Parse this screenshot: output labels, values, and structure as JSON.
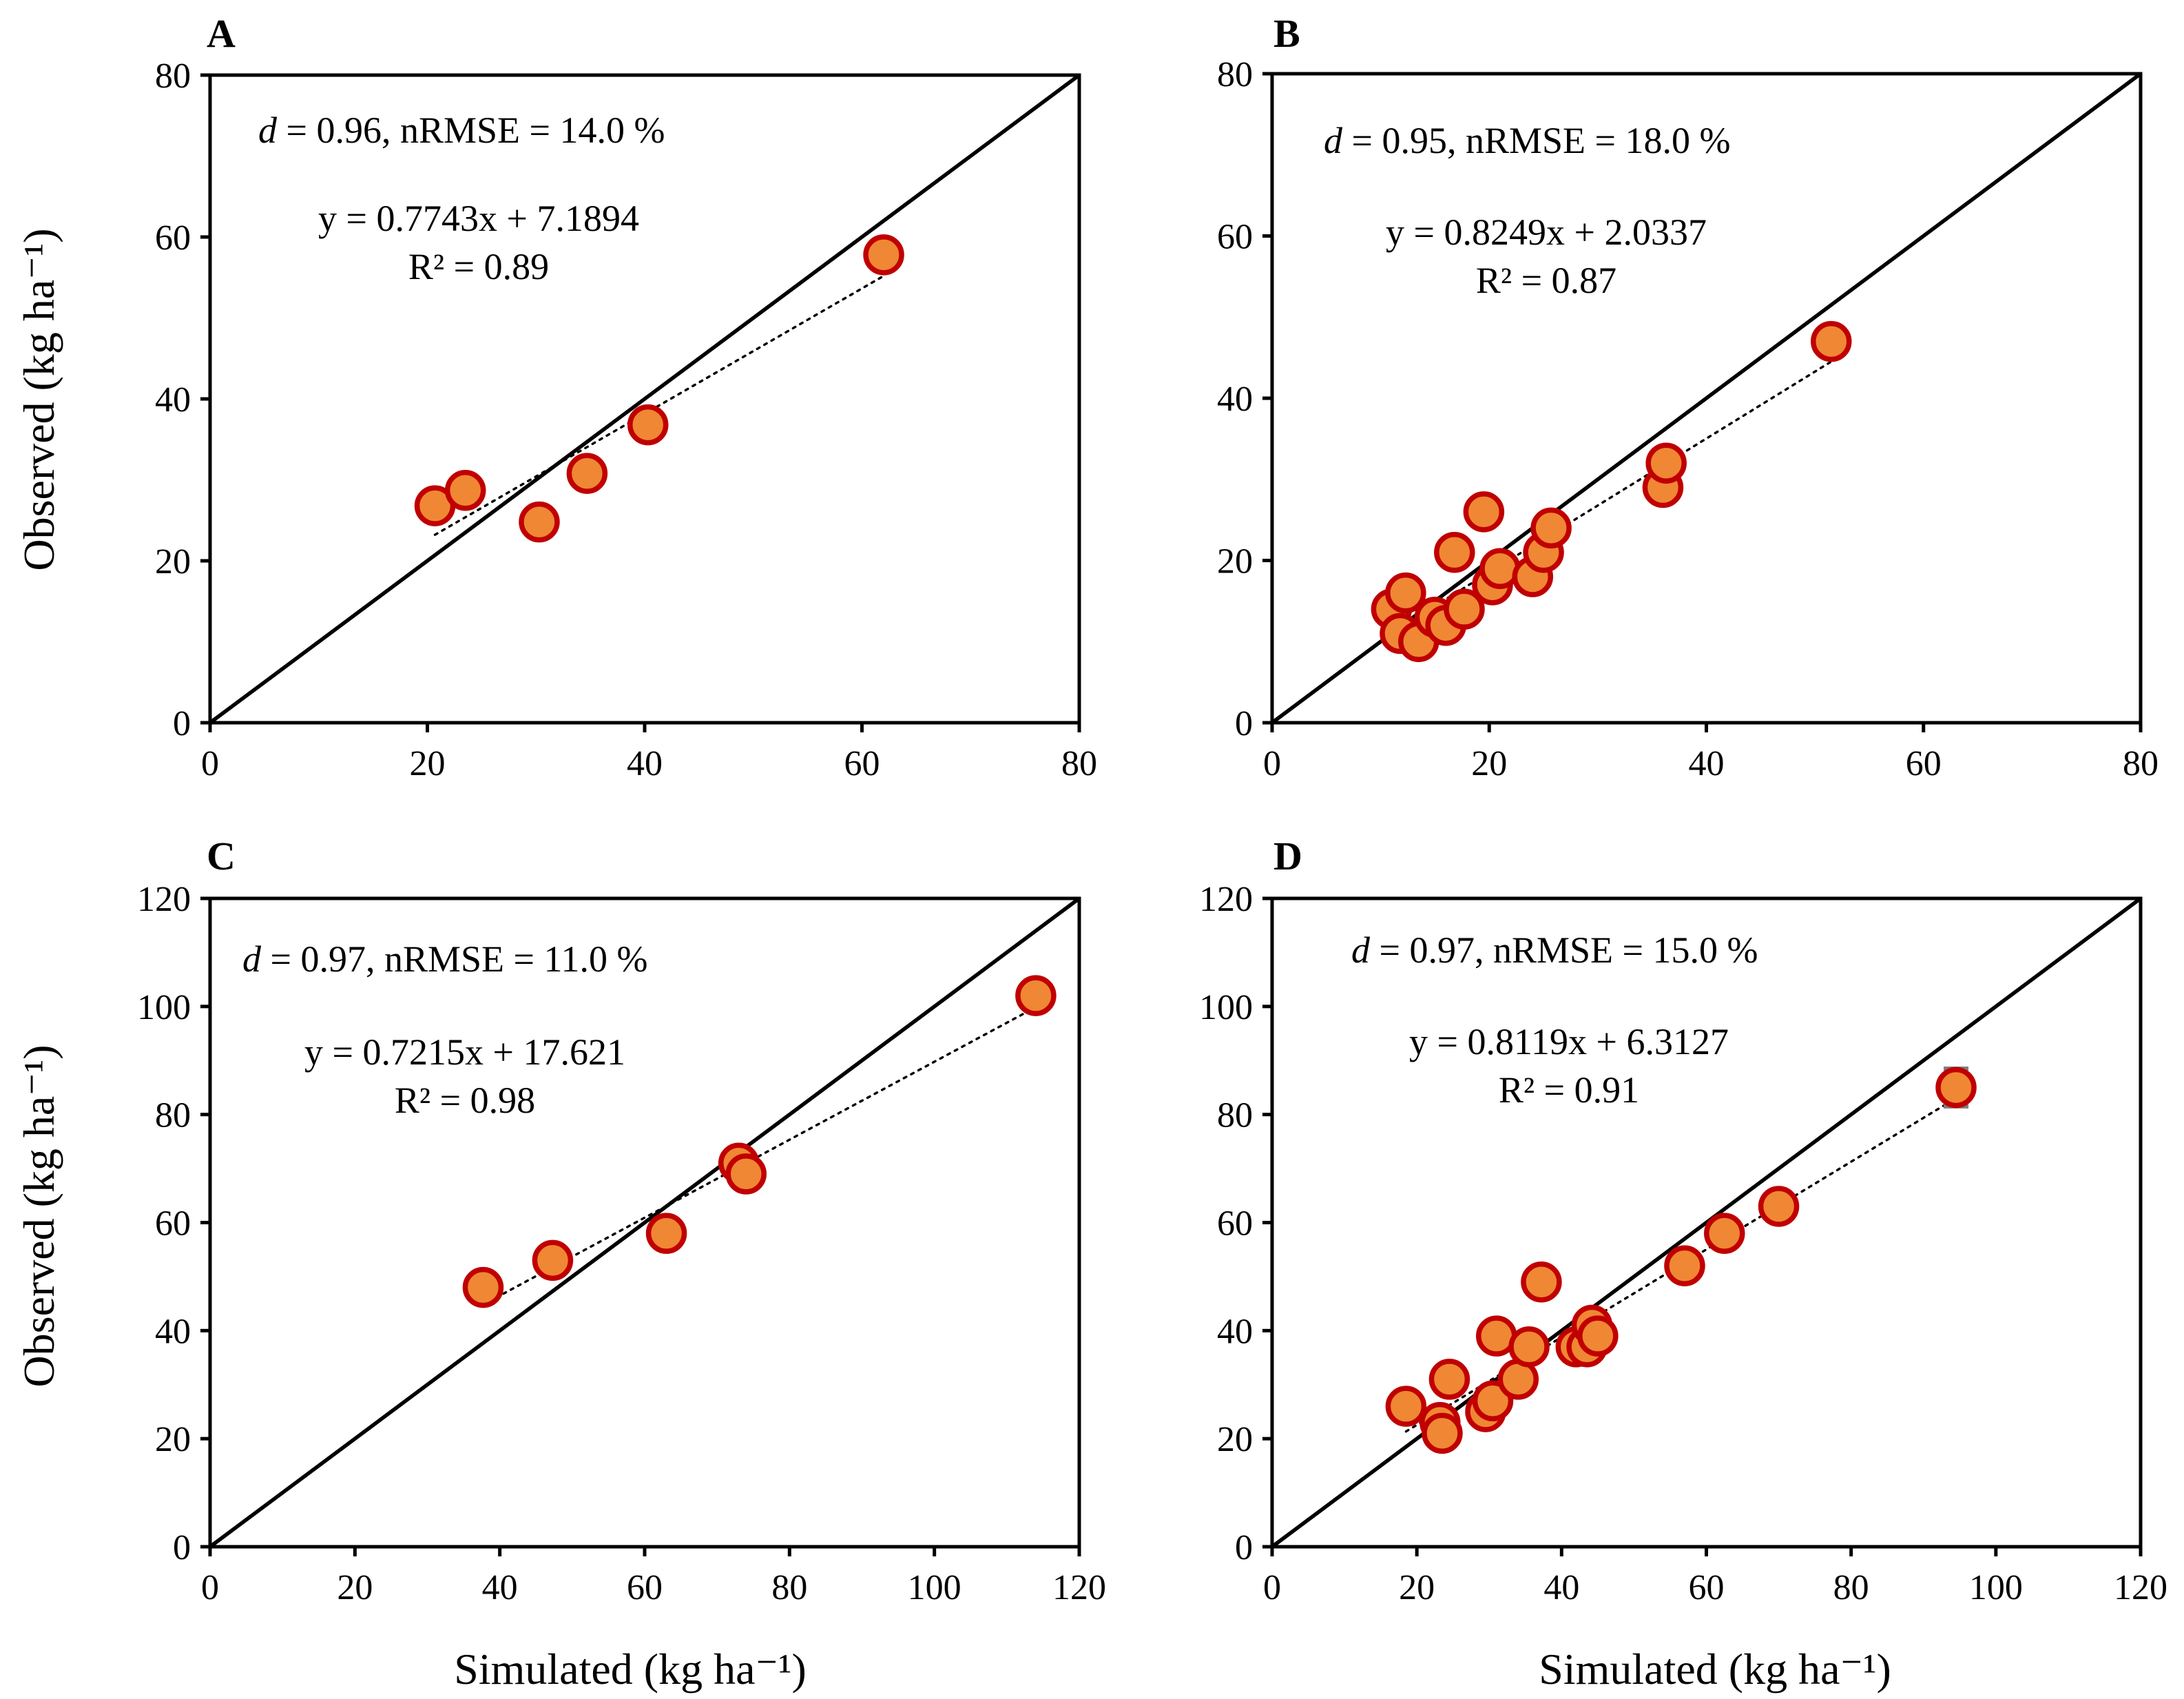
{
  "colors": {
    "marker_fill": "#f08734",
    "marker_edge": "#c00000",
    "error_bar": "#7f7f7f"
  },
  "chart_data": [
    {
      "type": "scatter",
      "panel": "A",
      "xlim": [
        0,
        80
      ],
      "ylim": [
        0,
        80
      ],
      "xticks": [
        0,
        20,
        40,
        60,
        80
      ],
      "yticks": [
        0,
        20,
        40,
        60,
        80
      ],
      "stats_d": "d",
      "stats_rest": " = 0.96, nRMSE = 14.0 %",
      "equation": "y = 0.7743x + 7.1894",
      "r2": "R² = 0.89",
      "fit": {
        "slope": 0.7743,
        "intercept": 7.1894,
        "x_range": [
          20.7,
          62.0
        ]
      },
      "points": [
        [
          20.7,
          26.8
        ],
        [
          23.5,
          28.7
        ],
        [
          30.3,
          24.8
        ],
        [
          34.7,
          30.8
        ],
        [
          40.3,
          36.8
        ],
        [
          62.0,
          57.8
        ]
      ]
    },
    {
      "type": "scatter",
      "panel": "B",
      "xlim": [
        0,
        80
      ],
      "ylim": [
        0,
        80
      ],
      "xticks": [
        0,
        20,
        40,
        60,
        80
      ],
      "yticks": [
        0,
        20,
        40,
        60,
        80
      ],
      "stats_d": "d",
      "stats_rest": " = 0.95, nRMSE = 18.0 %",
      "equation": "y = 0.8249x + 2.0337",
      "r2": "R² = 0.87",
      "fit": {
        "slope": 0.8249,
        "intercept": 2.0337,
        "x_range": [
          11.0,
          51.5
        ]
      },
      "points": [
        [
          11.0,
          14.0
        ],
        [
          11.8,
          11.0
        ],
        [
          12.3,
          16.0
        ],
        [
          13.5,
          10.0
        ],
        [
          15.0,
          13.0
        ],
        [
          16.0,
          12.0
        ],
        [
          16.8,
          21.0
        ],
        [
          17.7,
          14.0
        ],
        [
          19.5,
          26.0
        ],
        [
          20.3,
          17.0
        ],
        [
          21.0,
          19.0
        ],
        [
          24.0,
          18.0
        ],
        [
          25.0,
          21.0
        ],
        [
          25.7,
          24.0
        ],
        [
          36.0,
          29.0
        ],
        [
          36.3,
          32.0
        ],
        [
          51.5,
          47.0
        ]
      ]
    },
    {
      "type": "scatter",
      "panel": "C",
      "xlim": [
        0,
        120
      ],
      "ylim": [
        0,
        120
      ],
      "xticks": [
        0,
        20,
        40,
        60,
        80,
        100,
        120
      ],
      "yticks": [
        0,
        20,
        40,
        60,
        80,
        100,
        120
      ],
      "stats_d": "d",
      "stats_rest": " = 0.97, nRMSE = 11.0 %",
      "equation": "y = 0.7215x + 17.621",
      "r2": "R² = 0.98",
      "fit": {
        "slope": 0.7215,
        "intercept": 17.621,
        "x_range": [
          37.5,
          114.0
        ]
      },
      "points": [
        [
          37.7,
          48.0
        ],
        [
          47.3,
          53.0
        ],
        [
          63.0,
          58.0
        ],
        [
          73.0,
          71.0
        ],
        [
          74.0,
          69.0
        ],
        [
          114.0,
          102.0
        ]
      ]
    },
    {
      "type": "scatter",
      "panel": "D",
      "xlim": [
        0,
        120
      ],
      "ylim": [
        0,
        120
      ],
      "xticks": [
        0,
        20,
        40,
        60,
        80,
        100,
        120
      ],
      "yticks": [
        0,
        20,
        40,
        60,
        80,
        100,
        120
      ],
      "stats_d": "d",
      "stats_rest": " = 0.97, nRMSE = 15.0 %",
      "equation": "y = 0.8119x + 6.3127",
      "r2": "R² = 0.91",
      "fit": {
        "slope": 0.8119,
        "intercept": 6.3127,
        "x_range": [
          18.5,
          94.5
        ]
      },
      "points": [
        [
          18.5,
          26.0
        ],
        [
          23.2,
          23.0
        ],
        [
          23.5,
          21.0
        ],
        [
          24.5,
          31.0
        ],
        [
          29.5,
          25.0
        ],
        [
          30.5,
          27.0
        ],
        [
          31.0,
          39.0
        ],
        [
          34.0,
          31.0
        ],
        [
          35.5,
          37.0
        ],
        [
          37.2,
          49.0
        ],
        [
          42.0,
          37.0
        ],
        [
          43.5,
          37.0
        ],
        [
          44.2,
          41.0
        ],
        [
          45.0,
          39.0
        ],
        [
          57.0,
          52.0
        ],
        [
          62.5,
          58.0
        ],
        [
          70.0,
          63.0
        ],
        [
          94.5,
          85.0
        ]
      ],
      "error_bars": [
        {
          "x": 94.5,
          "y": 85.0,
          "err": 3.5
        }
      ]
    }
  ],
  "axes_titles": {
    "y_top": "Observed (kg ha⁻¹)",
    "y_bottom": "Observed (kg ha⁻¹)",
    "x_left": "Simulated (kg ha⁻¹)",
    "x_right": "Simulated (kg ha⁻¹)"
  }
}
